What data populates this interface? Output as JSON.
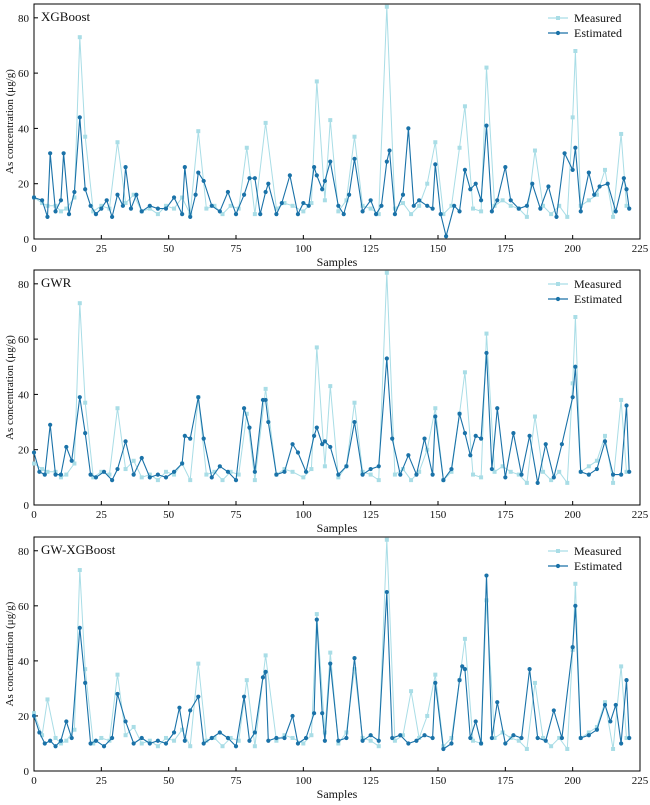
{
  "colors": {
    "measured": "#a9dde6",
    "estimated": "#1a72a8",
    "axis": "#000000"
  },
  "chart_data": [
    {
      "type": "line",
      "title": "XGBoost",
      "xlabel": "Samples",
      "ylabel": "As concentration (μg/g)",
      "xlim": [
        0,
        225
      ],
      "ylim": [
        0,
        85
      ],
      "xticks": [
        "0",
        "25",
        "50",
        "75",
        "100",
        "125",
        "150",
        "175",
        "200",
        "225"
      ],
      "yticks": [
        "0",
        "20",
        "40",
        "60",
        "80"
      ],
      "legend_position": "top-right",
      "series": [
        {
          "name": "Measured",
          "x": [
            0,
            3,
            5,
            8,
            10,
            12,
            15,
            17,
            19,
            22,
            25,
            28,
            31,
            34,
            37,
            40,
            43,
            46,
            49,
            52,
            55,
            58,
            61,
            64,
            67,
            70,
            73,
            76,
            79,
            82,
            86,
            90,
            93,
            96,
            100,
            103,
            105,
            108,
            110,
            113,
            116,
            119,
            122,
            125,
            128,
            131,
            134,
            137,
            140,
            143,
            146,
            149,
            152,
            155,
            158,
            160,
            163,
            166,
            168,
            171,
            174,
            177,
            180,
            183,
            186,
            189,
            192,
            195,
            198,
            200,
            201,
            203,
            206,
            209,
            212,
            215,
            218,
            220
          ],
          "values": [
            15,
            13,
            12,
            12,
            10,
            11,
            15,
            73,
            37,
            10,
            12,
            11,
            35,
            13,
            16,
            10,
            11,
            9,
            12,
            11,
            15,
            9,
            39,
            11,
            12,
            9,
            12,
            11,
            33,
            9,
            42,
            11,
            13,
            12,
            10,
            13,
            57,
            14,
            43,
            10,
            14,
            37,
            12,
            11,
            9,
            84,
            11,
            13,
            9,
            12,
            20,
            35,
            9,
            12,
            33,
            48,
            11,
            10,
            62,
            12,
            14,
            12,
            11,
            8,
            32,
            12,
            9,
            12,
            8,
            44,
            68,
            12,
            14,
            16,
            25,
            8,
            38,
            12
          ]
        },
        {
          "name": "Estimated",
          "x": [
            0,
            3,
            5,
            6,
            8,
            10,
            11,
            13,
            15,
            17,
            19,
            21,
            23,
            25,
            27,
            29,
            31,
            33,
            34,
            36,
            38,
            40,
            43,
            46,
            49,
            52,
            55,
            56,
            58,
            60,
            61,
            63,
            66,
            69,
            72,
            75,
            78,
            80,
            82,
            84,
            86,
            87,
            90,
            92,
            95,
            98,
            100,
            102,
            104,
            105,
            107,
            108,
            110,
            113,
            115,
            117,
            119,
            122,
            125,
            127,
            129,
            131,
            132,
            134,
            137,
            139,
            141,
            143,
            146,
            148,
            149,
            151,
            153,
            156,
            158,
            160,
            162,
            164,
            166,
            168,
            170,
            172,
            175,
            177,
            180,
            183,
            185,
            188,
            191,
            194,
            197,
            200,
            201,
            203,
            206,
            208,
            210,
            213,
            216,
            219,
            220,
            221
          ],
          "values": [
            15,
            14,
            8,
            31,
            10,
            14,
            31,
            9,
            17,
            44,
            18,
            12,
            9,
            11,
            14,
            8,
            16,
            12,
            26,
            11,
            16,
            10,
            12,
            11,
            11,
            15,
            9,
            26,
            8,
            16,
            24,
            21,
            12,
            10,
            17,
            9,
            16,
            22,
            22,
            9,
            17,
            20,
            9,
            13,
            23,
            9,
            13,
            12,
            26,
            23,
            18,
            21,
            28,
            12,
            9,
            16,
            29,
            10,
            14,
            9,
            12,
            28,
            32,
            9,
            16,
            40,
            12,
            14,
            12,
            11,
            27,
            9,
            1,
            12,
            10,
            25,
            18,
            20,
            14,
            41,
            10,
            14,
            26,
            14,
            11,
            12,
            20,
            11,
            19,
            8,
            31,
            25,
            33,
            10,
            24,
            16,
            19,
            20,
            10,
            22,
            18,
            11
          ]
        }
      ]
    },
    {
      "type": "line",
      "title": "GWR",
      "xlabel": "Samples",
      "ylabel": "As concentration (μg/g)",
      "xlim": [
        0,
        225
      ],
      "ylim": [
        0,
        85
      ],
      "xticks": [
        "0",
        "25",
        "50",
        "75",
        "100",
        "125",
        "150",
        "175",
        "200",
        "225"
      ],
      "yticks": [
        "0",
        "20",
        "40",
        "60",
        "80"
      ],
      "legend_position": "top-right",
      "series": [
        {
          "name": "Measured",
          "x": [
            0,
            3,
            5,
            8,
            10,
            12,
            15,
            17,
            19,
            22,
            25,
            28,
            31,
            34,
            37,
            40,
            43,
            46,
            49,
            52,
            55,
            58,
            61,
            64,
            67,
            70,
            73,
            76,
            79,
            82,
            86,
            90,
            93,
            96,
            100,
            103,
            105,
            108,
            110,
            113,
            116,
            119,
            122,
            125,
            128,
            131,
            134,
            137,
            140,
            143,
            146,
            149,
            152,
            155,
            158,
            160,
            163,
            166,
            168,
            171,
            174,
            177,
            180,
            183,
            186,
            189,
            192,
            195,
            198,
            200,
            201,
            203,
            206,
            209,
            212,
            215,
            218,
            220
          ],
          "values": [
            15,
            13,
            12,
            12,
            10,
            11,
            15,
            73,
            37,
            10,
            12,
            11,
            35,
            13,
            16,
            10,
            11,
            9,
            12,
            11,
            15,
            9,
            39,
            11,
            12,
            9,
            12,
            11,
            33,
            9,
            42,
            11,
            13,
            12,
            10,
            13,
            57,
            14,
            43,
            10,
            14,
            37,
            12,
            11,
            9,
            84,
            11,
            13,
            9,
            12,
            20,
            35,
            9,
            12,
            33,
            48,
            11,
            10,
            62,
            12,
            14,
            12,
            11,
            8,
            32,
            12,
            9,
            12,
            8,
            44,
            68,
            12,
            14,
            16,
            25,
            8,
            38,
            12
          ]
        },
        {
          "name": "Estimated",
          "x": [
            0,
            2,
            4,
            6,
            8,
            10,
            12,
            14,
            17,
            19,
            21,
            23,
            26,
            29,
            31,
            34,
            37,
            40,
            43,
            46,
            49,
            52,
            55,
            56,
            58,
            61,
            63,
            66,
            69,
            72,
            75,
            78,
            80,
            82,
            85,
            86,
            87,
            90,
            93,
            96,
            98,
            101,
            104,
            105,
            107,
            108,
            110,
            113,
            116,
            119,
            122,
            125,
            128,
            131,
            133,
            136,
            139,
            142,
            145,
            148,
            149,
            152,
            155,
            158,
            160,
            162,
            164,
            166,
            168,
            170,
            172,
            175,
            178,
            181,
            184,
            187,
            190,
            193,
            196,
            200,
            201,
            203,
            206,
            209,
            212,
            215,
            218,
            220,
            221
          ],
          "values": [
            19,
            12,
            11,
            29,
            11,
            11,
            21,
            16,
            39,
            26,
            11,
            10,
            12,
            9,
            13,
            23,
            11,
            17,
            10,
            11,
            10,
            12,
            15,
            25,
            24,
            39,
            24,
            10,
            14,
            12,
            9,
            35,
            28,
            12,
            38,
            38,
            30,
            11,
            12,
            22,
            19,
            12,
            25,
            28,
            22,
            23,
            21,
            11,
            14,
            30,
            11,
            13,
            14,
            53,
            24,
            11,
            18,
            11,
            24,
            11,
            32,
            9,
            13,
            33,
            26,
            18,
            25,
            24,
            55,
            13,
            35,
            10,
            26,
            11,
            25,
            8,
            22,
            10,
            22,
            39,
            50,
            12,
            11,
            13,
            23,
            11,
            11,
            36,
            12
          ]
        }
      ]
    },
    {
      "type": "line",
      "title": "GW-XGBoost",
      "xlabel": "Samples",
      "ylabel": "As concentration (μg/g)",
      "xlim": [
        0,
        225
      ],
      "ylim": [
        0,
        85
      ],
      "xticks": [
        "0",
        "25",
        "50",
        "75",
        "100",
        "125",
        "150",
        "175",
        "200",
        "225"
      ],
      "yticks": [
        "0",
        "20",
        "40",
        "60",
        "80"
      ],
      "legend_position": "top-right",
      "series": [
        {
          "name": "Measured",
          "x": [
            0,
            3,
            5,
            8,
            10,
            12,
            15,
            17,
            19,
            22,
            25,
            28,
            31,
            34,
            37,
            40,
            43,
            46,
            49,
            52,
            55,
            58,
            61,
            64,
            67,
            70,
            73,
            76,
            79,
            82,
            86,
            90,
            93,
            96,
            100,
            103,
            105,
            108,
            110,
            113,
            116,
            119,
            122,
            125,
            128,
            131,
            134,
            137,
            140,
            143,
            146,
            149,
            152,
            155,
            158,
            160,
            163,
            166,
            168,
            171,
            174,
            177,
            180,
            183,
            186,
            189,
            192,
            195,
            198,
            200,
            201,
            203,
            206,
            209,
            212,
            215,
            218,
            220
          ],
          "values": [
            21,
            13,
            26,
            12,
            10,
            11,
            15,
            73,
            37,
            10,
            12,
            11,
            35,
            13,
            16,
            10,
            11,
            9,
            12,
            11,
            15,
            9,
            39,
            11,
            12,
            9,
            12,
            11,
            33,
            9,
            42,
            11,
            13,
            12,
            10,
            13,
            57,
            14,
            43,
            10,
            14,
            37,
            12,
            11,
            9,
            84,
            11,
            13,
            29,
            12,
            20,
            35,
            9,
            12,
            33,
            48,
            11,
            10,
            62,
            12,
            14,
            12,
            11,
            8,
            32,
            12,
            9,
            12,
            8,
            44,
            68,
            12,
            14,
            16,
            25,
            8,
            38,
            12
          ]
        },
        {
          "name": "Estimated",
          "x": [
            0,
            2,
            4,
            6,
            8,
            10,
            12,
            14,
            17,
            19,
            21,
            23,
            26,
            29,
            31,
            34,
            37,
            40,
            43,
            46,
            49,
            52,
            54,
            56,
            58,
            61,
            63,
            66,
            69,
            72,
            75,
            78,
            80,
            82,
            85,
            86,
            87,
            90,
            93,
            96,
            98,
            101,
            104,
            105,
            107,
            108,
            110,
            113,
            116,
            119,
            122,
            125,
            128,
            131,
            133,
            136,
            139,
            142,
            145,
            148,
            149,
            152,
            155,
            158,
            159,
            160,
            162,
            164,
            166,
            168,
            170,
            172,
            175,
            178,
            181,
            184,
            187,
            190,
            193,
            196,
            200,
            201,
            203,
            206,
            209,
            212,
            214,
            216,
            218,
            220,
            221
          ],
          "values": [
            20,
            14,
            10,
            11,
            9,
            11,
            18,
            12,
            52,
            32,
            10,
            11,
            9,
            12,
            28,
            18,
            10,
            12,
            10,
            11,
            10,
            14,
            23,
            11,
            22,
            27,
            10,
            12,
            14,
            12,
            9,
            27,
            11,
            14,
            34,
            36,
            11,
            12,
            12,
            20,
            10,
            12,
            21,
            55,
            21,
            11,
            39,
            11,
            12,
            41,
            11,
            13,
            11,
            65,
            12,
            13,
            10,
            11,
            13,
            12,
            32,
            8,
            10,
            33,
            38,
            37,
            12,
            18,
            10,
            71,
            12,
            25,
            10,
            13,
            12,
            37,
            12,
            11,
            22,
            12,
            45,
            60,
            12,
            13,
            15,
            24,
            18,
            24,
            10,
            33,
            12
          ]
        }
      ]
    }
  ]
}
